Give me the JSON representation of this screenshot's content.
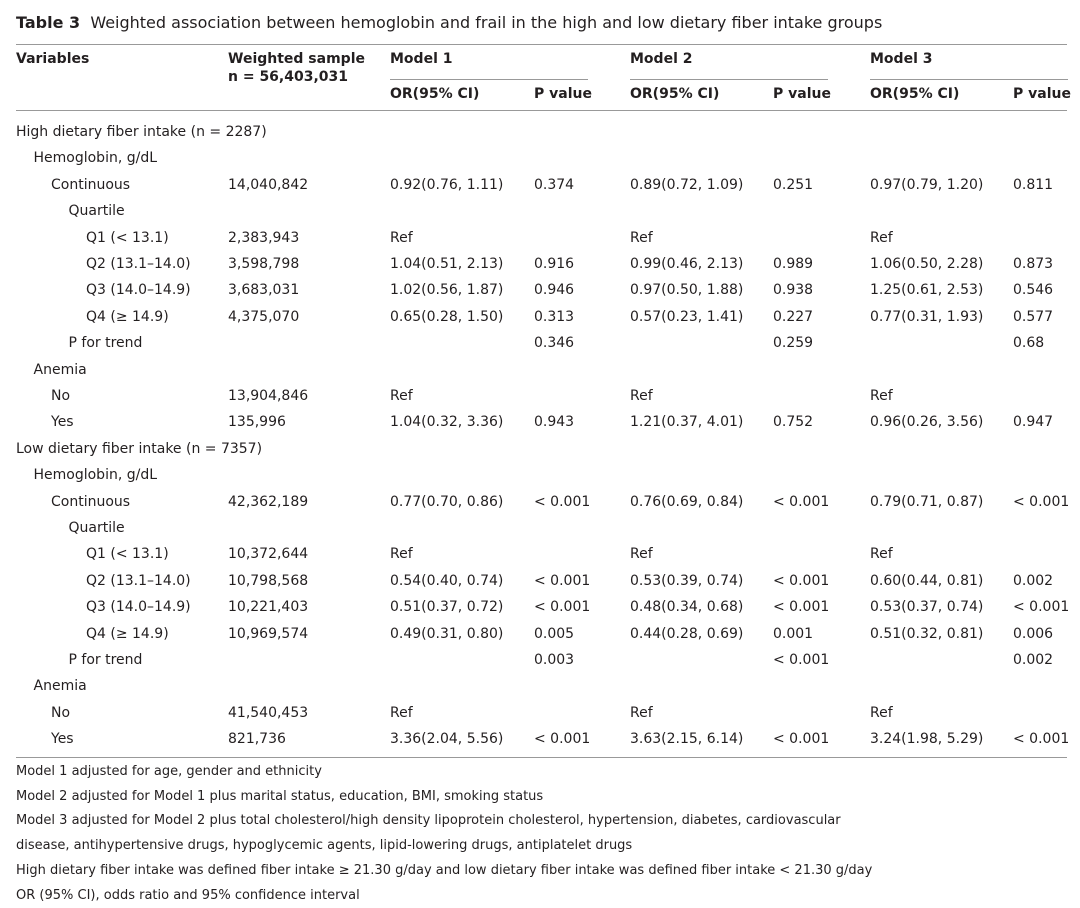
{
  "title": {
    "label": "Table 3",
    "text": "Weighted association between hemoglobin and frail in the high and low dietary fiber intake groups"
  },
  "header": {
    "variables": "Variables",
    "weighted_sample": "Weighted sample",
    "n": "n = 56,403,031",
    "models": [
      {
        "name": "Model 1",
        "or": "OR(95% CI)",
        "p": "P value"
      },
      {
        "name": "Model 2",
        "or": "OR(95% CI)",
        "p": "P value"
      },
      {
        "name": "Model 3",
        "or": "OR(95% CI)",
        "p": "P value"
      }
    ]
  },
  "table": {
    "rows": [
      [
        "High dietary fiber intake (n = 2287)",
        null,
        null,
        null,
        null,
        null,
        null,
        null
      ],
      [
        "Hemoglobin, g/dL",
        null,
        null,
        null,
        null,
        null,
        null,
        null
      ],
      [
        "Continuous",
        "14,040,842",
        "0.92(0.76, 1.11)",
        "0.374",
        "0.89(0.72, 1.09)",
        "0.251",
        "0.97(0.79, 1.20)",
        "0.811"
      ],
      [
        "Quartile",
        null,
        null,
        null,
        null,
        null,
        null,
        null
      ],
      [
        "Q1 (< 13.1)",
        "2,383,943",
        "Ref",
        null,
        "Ref",
        null,
        "Ref",
        null
      ],
      [
        "Q2 (13.1–14.0)",
        "3,598,798",
        "1.04(0.51, 2.13)",
        "0.916",
        "0.99(0.46, 2.13)",
        "0.989",
        "1.06(0.50, 2.28)",
        "0.873"
      ],
      [
        "Q3 (14.0–14.9)",
        "3,683,031",
        "1.02(0.56, 1.87)",
        "0.946",
        "0.97(0.50, 1.88)",
        "0.938",
        "1.25(0.61, 2.53)",
        "0.546"
      ],
      [
        "Q4 (≥ 14.9)",
        "4,375,070",
        "0.65(0.28, 1.50)",
        "0.313",
        "0.57(0.23, 1.41)",
        "0.227",
        "0.77(0.31, 1.93)",
        "0.577"
      ],
      [
        "P for trend",
        null,
        null,
        "0.346",
        null,
        "0.259",
        null,
        "0.68"
      ],
      [
        "Anemia",
        null,
        null,
        null,
        null,
        null,
        null,
        null
      ],
      [
        "No",
        "13,904,846",
        "Ref",
        null,
        "Ref",
        null,
        "Ref",
        null
      ],
      [
        "Yes",
        "135,996",
        "1.04(0.32, 3.36)",
        "0.943",
        "1.21(0.37, 4.01)",
        "0.752",
        "0.96(0.26, 3.56)",
        "0.947"
      ],
      [
        "Low dietary fiber intake (n = 7357)",
        null,
        null,
        null,
        null,
        null,
        null,
        null
      ],
      [
        "Hemoglobin, g/dL",
        null,
        null,
        null,
        null,
        null,
        null,
        null
      ],
      [
        "Continuous",
        "42,362,189",
        "0.77(0.70, 0.86)",
        "< 0.001",
        "0.76(0.69, 0.84)",
        "< 0.001",
        "0.79(0.71, 0.87)",
        "< 0.001"
      ],
      [
        "Quartile",
        null,
        null,
        null,
        null,
        null,
        null,
        null
      ],
      [
        "Q1 (< 13.1)",
        "10,372,644",
        "Ref",
        null,
        "Ref",
        null,
        "Ref",
        null
      ],
      [
        "Q2 (13.1–14.0)",
        "10,798,568",
        "0.54(0.40, 0.74)",
        "< 0.001",
        "0.53(0.39, 0.74)",
        "< 0.001",
        "0.60(0.44, 0.81)",
        "0.002"
      ],
      [
        "Q3 (14.0–14.9)",
        "10,221,403",
        "0.51(0.37, 0.72)",
        "< 0.001",
        "0.48(0.34, 0.68)",
        "< 0.001",
        "0.53(0.37, 0.74)",
        "< 0.001"
      ],
      [
        "Q4 (≥ 14.9)",
        "10,969,574",
        "0.49(0.31, 0.80)",
        "0.005",
        "0.44(0.28, 0.69)",
        "0.001",
        "0.51(0.32, 0.81)",
        "0.006"
      ],
      [
        "P for trend",
        null,
        null,
        "0.003",
        null,
        "< 0.001",
        null,
        "0.002"
      ],
      [
        "Anemia",
        null,
        null,
        null,
        null,
        null,
        null,
        null
      ],
      [
        "No",
        "41,540,453",
        "Ref",
        null,
        "Ref",
        null,
        "Ref",
        null
      ],
      [
        "Yes",
        "821,736",
        "3.36(2.04, 5.56)",
        "< 0.001",
        "3.63(2.15, 6.14)",
        "< 0.001",
        "3.24(1.98, 5.29)",
        "< 0.001"
      ]
    ]
  },
  "footnotes": [
    "Model 1 adjusted for age, gender and ethnicity",
    "Model 2 adjusted for Model 1 plus marital status, education, BMI, smoking status",
    "Model 3 adjusted for Model 2 plus total cholesterol/high density lipoprotein cholesterol, hypertension, diabetes, cardiovascular",
    "disease, antihypertensive drugs, hypoglycemic agents, lipid-lowering drugs, antiplatelet drugs",
    "High dietary fiber intake was defined fiber intake ≥ 21.30 g/day and low dietary fiber intake was defined fiber intake < 21.30 g/day",
    "OR (95% CI), odds ratio and 95% confidence interval"
  ]
}
